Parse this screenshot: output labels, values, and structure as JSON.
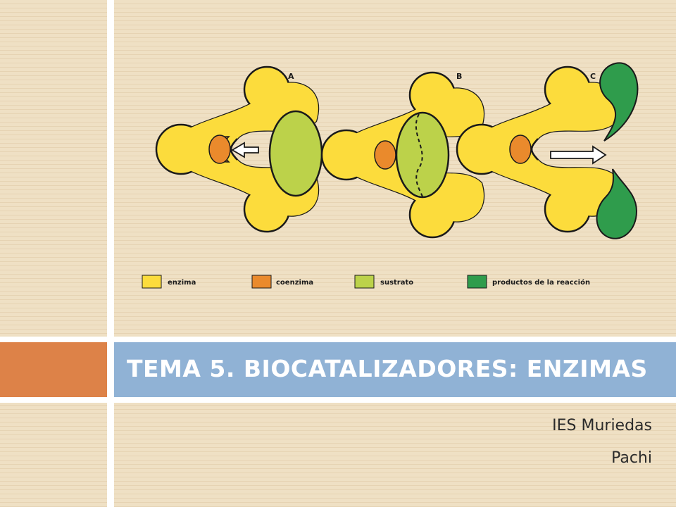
{
  "slide": {
    "title": "TEMA 5. BIOCATALIZADORES: ENZIMAS",
    "subtitle_line1": "IES Muriedas",
    "subtitle_line2": "Pachi"
  },
  "diagram": {
    "panels": [
      {
        "label": "A"
      },
      {
        "label": "B"
      },
      {
        "label": "C"
      }
    ],
    "legend": [
      {
        "label": "enzima",
        "color": "#fcdc3c"
      },
      {
        "label": "coenzima",
        "color": "#ea8a2c"
      },
      {
        "label": "sustrato",
        "color": "#bcd24a"
      },
      {
        "label": "productos de la reacción",
        "color": "#2f9c4c"
      }
    ]
  },
  "colors": {
    "background": "#efe0c4",
    "title_bar": "#90b2d5",
    "accent_box": "#dd8248",
    "title_text": "#ffffff"
  }
}
